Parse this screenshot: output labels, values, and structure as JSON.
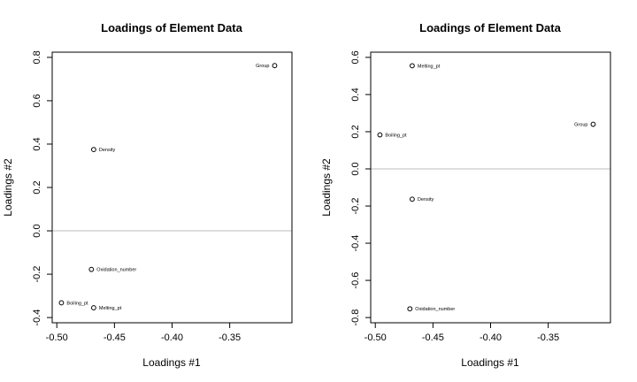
{
  "chart_data": [
    {
      "type": "scatter",
      "title": "Loadings of Element Data",
      "xlabel": "Loadings #1",
      "ylabel": "Loadings #2",
      "xlim": [
        -0.5,
        -0.3
      ],
      "ylim": [
        -0.4,
        0.8
      ],
      "xticks": [
        -0.5,
        -0.45,
        -0.4,
        -0.35
      ],
      "xtick_labels": [
        "-0.50",
        "-0.45",
        "-0.40",
        "-0.35"
      ],
      "yticks": [
        -0.4,
        -0.2,
        0.0,
        0.2,
        0.4,
        0.6,
        0.8
      ],
      "ytick_labels": [
        "-0.4",
        "-0.2",
        "0.0",
        "0.2",
        "0.4",
        "0.6",
        "0.8"
      ],
      "hline": 0,
      "grid": false,
      "points": [
        {
          "label": "Group",
          "x": -0.311,
          "y": 0.762
        },
        {
          "label": "Density",
          "x": -0.468,
          "y": 0.375
        },
        {
          "label": "Oxidation_number",
          "x": -0.47,
          "y": -0.178
        },
        {
          "label": "Boiling_pt",
          "x": -0.496,
          "y": -0.332
        },
        {
          "label": "Melting_pt",
          "x": -0.468,
          "y": -0.355
        }
      ]
    },
    {
      "type": "scatter",
      "title": "Loadings of Element Data",
      "xlabel": "Loadings #1",
      "ylabel": "Loadings #2",
      "xlim": [
        -0.5,
        -0.3
      ],
      "ylim": [
        -0.8,
        0.6
      ],
      "xticks": [
        -0.5,
        -0.45,
        -0.4,
        -0.35
      ],
      "xtick_labels": [
        "-0.50",
        "-0.45",
        "-0.40",
        "-0.35"
      ],
      "yticks": [
        -0.8,
        -0.6,
        -0.4,
        -0.2,
        0.0,
        0.2,
        0.4,
        0.6
      ],
      "ytick_labels": [
        "-0.8",
        "-0.6",
        "-0.4",
        "-0.2",
        "0.0",
        "0.2",
        "0.4",
        "0.6"
      ],
      "hline": 0,
      "grid": false,
      "points": [
        {
          "label": "Melting_pt",
          "x": -0.468,
          "y": 0.555
        },
        {
          "label": "Boiling_pt",
          "x": -0.496,
          "y": 0.183
        },
        {
          "label": "Group",
          "x": -0.311,
          "y": 0.24
        },
        {
          "label": "Density",
          "x": -0.468,
          "y": -0.163
        },
        {
          "label": "Oxidation_number",
          "x": -0.47,
          "y": -0.753
        }
      ]
    }
  ]
}
